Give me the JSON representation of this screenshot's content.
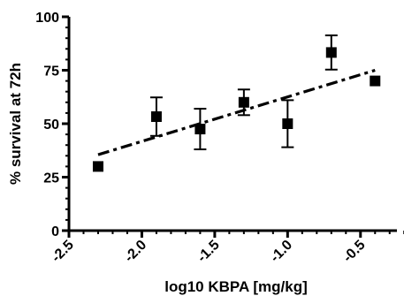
{
  "chart_data": {
    "type": "scatter",
    "title": "",
    "xlabel": "log10 KBPA [mg/kg]",
    "ylabel": "% survival at 72h",
    "xlim": [
      -2.5,
      -0.25
    ],
    "ylim": [
      0,
      100
    ],
    "xticks": [
      -2.5,
      -2.0,
      -1.5,
      -1.0,
      -0.5
    ],
    "xtick_labels": [
      "-2.5",
      "-2.0",
      "-1.5",
      "-1.0",
      "-0.5"
    ],
    "yticks": [
      0,
      25,
      50,
      75,
      100
    ],
    "ytick_labels": [
      "0",
      "25",
      "50",
      "75",
      "100"
    ],
    "x_minor_step": 0.1,
    "y_minor_step": 5,
    "grid": false,
    "legend": "none",
    "points": [
      {
        "x": -2.3,
        "y": 30,
        "err": null
      },
      {
        "x": -1.9,
        "y": 53.3,
        "err": 9
      },
      {
        "x": -1.6,
        "y": 47.5,
        "err": 9.5
      },
      {
        "x": -1.3,
        "y": 60,
        "err": 6
      },
      {
        "x": -1.0,
        "y": 50,
        "err": 11
      },
      {
        "x": -0.7,
        "y": 83.3,
        "err": 8
      },
      {
        "x": -0.4,
        "y": 70,
        "err": null
      }
    ],
    "fit_line": {
      "style": "dash-dot",
      "x": [
        -2.3,
        -0.4
      ],
      "y": [
        35.5,
        75
      ]
    },
    "colors": {
      "marker": "#000000",
      "axis": "#000000",
      "fit": "#000000"
    }
  }
}
